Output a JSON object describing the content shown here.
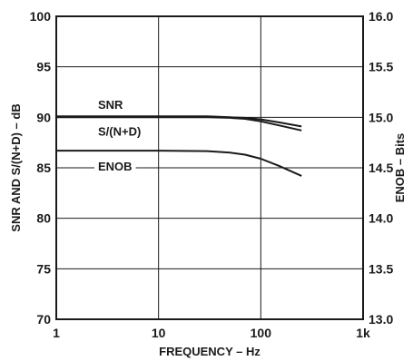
{
  "chart_data": {
    "type": "line",
    "xlabel": "FREQUENCY – Hz",
    "ylabel": "SNR AND S/(N+D) – dB",
    "y2label": "ENOB – Bits",
    "x_scale": "log",
    "xlim": [
      1,
      1000
    ],
    "ylim": [
      70,
      100
    ],
    "y2lim": [
      13.0,
      16.0
    ],
    "grid": true,
    "x_ticks": [
      1,
      10,
      100,
      1000
    ],
    "x_tick_labels": [
      "1",
      "10",
      "100",
      "1k"
    ],
    "y_ticks": [
      70,
      75,
      80,
      85,
      90,
      95,
      100
    ],
    "y_tick_labels": [
      "70",
      "75",
      "80",
      "85",
      "90",
      "95",
      "100"
    ],
    "y2_ticks": [
      13.0,
      13.5,
      14.0,
      14.5,
      15.0,
      15.5,
      16.0
    ],
    "y2_tick_labels": [
      "13.0",
      "13.5",
      "14.0",
      "14.5",
      "15.0",
      "15.5",
      "16.0"
    ],
    "series": [
      {
        "name": "SNR",
        "axis": "left",
        "x": [
          1,
          5,
          10,
          30,
          50,
          70,
          100,
          150,
          250
        ],
        "y": [
          90.1,
          90.1,
          90.1,
          90.1,
          90.0,
          89.95,
          89.8,
          89.5,
          89.1
        ]
      },
      {
        "name": "S/(N+D)",
        "axis": "left",
        "x": [
          1,
          5,
          10,
          30,
          50,
          70,
          100,
          150,
          250
        ],
        "y": [
          90.0,
          90.0,
          90.0,
          90.0,
          89.95,
          89.85,
          89.6,
          89.2,
          88.7
        ]
      },
      {
        "name": "ENOB",
        "axis": "right",
        "x": [
          1,
          5,
          10,
          30,
          50,
          70,
          100,
          150,
          250
        ],
        "y": [
          14.67,
          14.67,
          14.67,
          14.665,
          14.65,
          14.63,
          14.59,
          14.52,
          14.42
        ]
      }
    ]
  }
}
